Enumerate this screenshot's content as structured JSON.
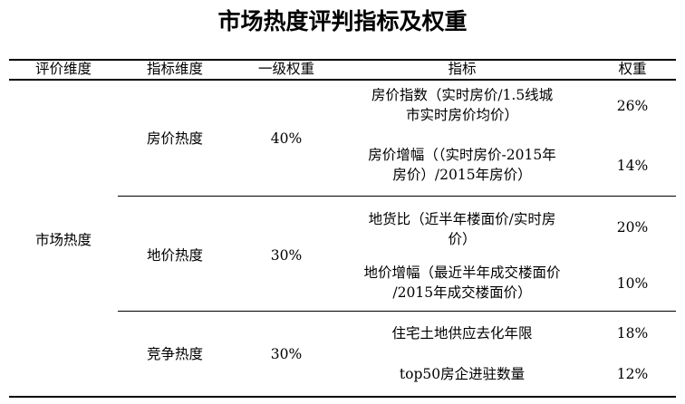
{
  "title": "市场热度评判指标及权重",
  "headers": [
    "评价维度",
    "指标维度",
    "一级权重",
    "指标",
    "权重"
  ],
  "dimension": "市场热度",
  "groups": [
    {
      "name": "房价热度",
      "weight": "40%",
      "items": [
        {
          "line1": "房价指数（实时房价/1.5线城",
          "line2": "市实时房价均价）",
          "weight": "26%"
        },
        {
          "line1": "房价增幅（（实时房价-2015年",
          "line2": "房价）/2015年房价）",
          "weight": "14%"
        }
      ]
    },
    {
      "name": "地价热度",
      "weight": "30%",
      "items": [
        {
          "line1": "地货比（近半年楼面价/实时房",
          "line2": "价）",
          "weight": "20%"
        },
        {
          "line1": "地价增幅（最近半年成交楼面价",
          "line2": "/2015年成交楼面价）",
          "weight": "10%"
        }
      ]
    },
    {
      "name": "竞争热度",
      "weight": "30%",
      "items": [
        {
          "line1": "住宅土地供应去化年限",
          "line2": "",
          "weight": "18%"
        },
        {
          "line1": "top50房企进驻数量",
          "line2": "",
          "weight": "12%"
        }
      ]
    }
  ]
}
